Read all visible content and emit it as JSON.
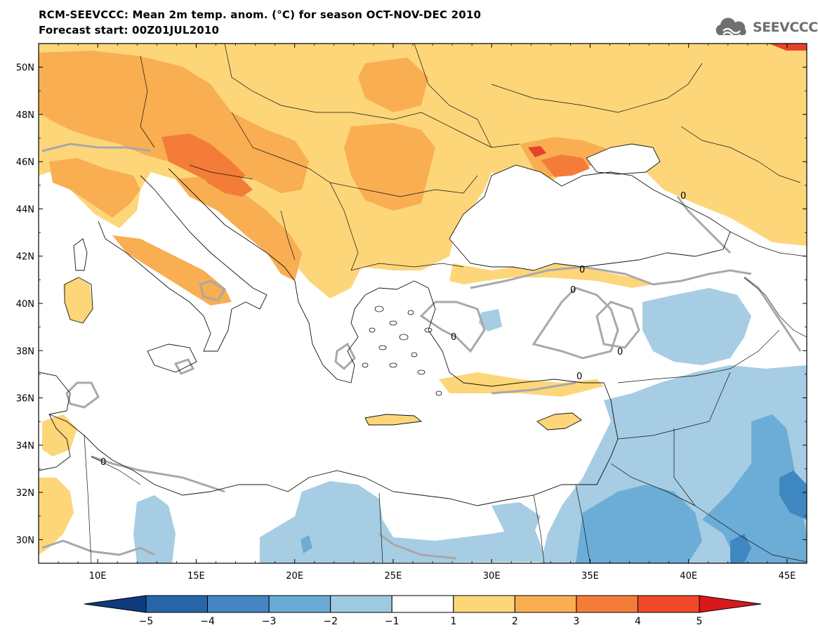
{
  "header": {
    "title": "RCM-SEEVCCC: Mean 2m temp. anom. (°C) for season OCT-NOV-DEC 2010",
    "subtitle": "Forecast start: 00Z01JUL2010",
    "logo_text": "SEEVCCC"
  },
  "map": {
    "lon_range": [
      7,
      46
    ],
    "lat_range": [
      29,
      51
    ],
    "lon_ticks": [
      10,
      15,
      20,
      25,
      30,
      35,
      40,
      45
    ],
    "lon_tick_labels": [
      "10E",
      "15E",
      "20E",
      "25E",
      "30E",
      "35E",
      "40E",
      "45E"
    ],
    "lat_ticks": [
      30,
      32,
      34,
      36,
      38,
      40,
      42,
      44,
      46,
      48,
      50
    ],
    "lat_tick_labels": [
      "30N",
      "32N",
      "34N",
      "36N",
      "38N",
      "40N",
      "42N",
      "44N",
      "46N",
      "48N",
      "50N"
    ],
    "zero_contour_label": "0",
    "colors": {
      "land_neutral": "#ffffff",
      "sea": "#ffffff",
      "plus1": "#fdd67a",
      "plus2": "#f9ae52",
      "plus3": "#f37d38",
      "plus4": "#e6432a",
      "minus1": "#a6cde3",
      "minus2": "#6cadd7",
      "minus3": "#3f87c0"
    }
  },
  "colorbar": {
    "levels": [
      -5,
      -4,
      -3,
      -2,
      -1,
      1,
      2,
      3,
      4,
      5
    ],
    "labels": [
      "−5",
      "−4",
      "−3",
      "−2",
      "−1",
      "1",
      "2",
      "3",
      "4",
      "5"
    ],
    "colors": [
      "#0e3b7e",
      "#2565a8",
      "#4585c2",
      "#6aabd6",
      "#9ecae1",
      "#ffffff",
      "#fdd67a",
      "#f9ae52",
      "#f37d38",
      "#f0492a",
      "#d7191c"
    ]
  }
}
